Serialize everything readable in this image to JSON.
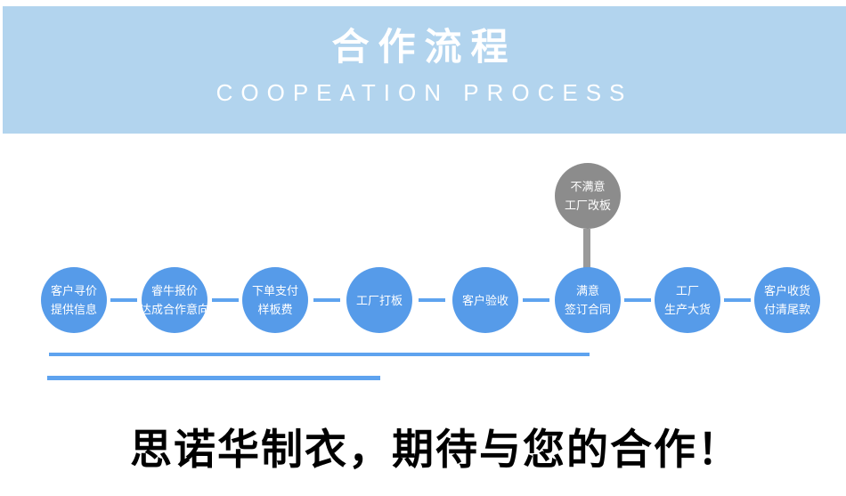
{
  "header": {
    "title": "合作流程",
    "subtitle": "COOPEATION PROCESS"
  },
  "flow": {
    "steps": [
      {
        "line1": "客户寻价",
        "line2": "提供信息"
      },
      {
        "line1": "睿牛报价",
        "line2": "达成合作意向"
      },
      {
        "line1": "下单支付",
        "line2": "样板费"
      },
      {
        "line1": "工厂打板",
        "line2": ""
      },
      {
        "line1": "客户验收",
        "line2": ""
      },
      {
        "line1": "满意",
        "line2": "签订合同"
      },
      {
        "line1": "工厂",
        "line2": "生产大货"
      },
      {
        "line1": "客户收货",
        "line2": "付清尾款"
      }
    ],
    "branch": {
      "line1": "不满意",
      "line2": "工厂改板"
    }
  },
  "footer": {
    "slogan": "思诺华制衣，期待与您的合作！"
  },
  "colors": {
    "banner_bg": "#b2d4ee",
    "circle_blue": "#569be9",
    "circle_gray": "#8c8c8c",
    "connector_blue": "#5ea3ef",
    "branch_line_gray": "#9a9a9a",
    "text_white": "#ffffff",
    "slogan_black": "#000000"
  }
}
